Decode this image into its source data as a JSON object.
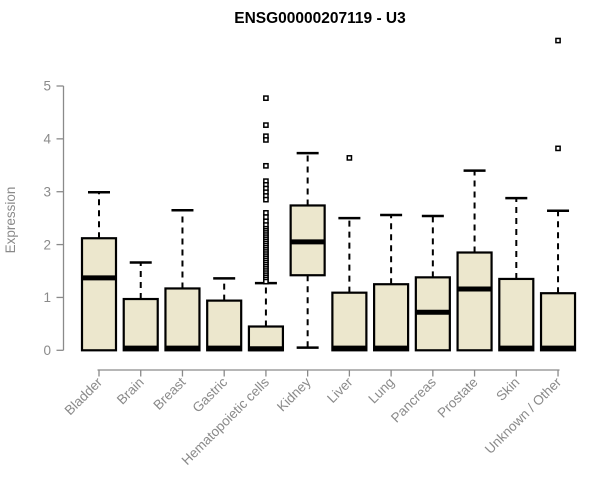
{
  "chart_data": {
    "type": "boxplot",
    "title": "ENSG00000207119 - U3",
    "xlabel": "",
    "ylabel": "Expression",
    "ylim": [
      0,
      5
    ],
    "yticks": [
      0,
      1,
      2,
      3,
      4,
      5
    ],
    "grid": false,
    "legend": false,
    "categories": [
      "Bladder",
      "Brain",
      "Breast",
      "Gastric",
      "Hematopoietic cells",
      "Kidney",
      "Liver",
      "Lung",
      "Pancreas",
      "Prostate",
      "Skin",
      "Unknown / Other"
    ],
    "boxes": [
      {
        "label": "Bladder",
        "min": 0,
        "q1": 0,
        "median": 1.37,
        "q3": 2.12,
        "max": 2.99,
        "outliers": []
      },
      {
        "label": "Brain",
        "min": 0,
        "q1": 0,
        "median": 0.04,
        "q3": 0.97,
        "max": 1.66,
        "outliers": []
      },
      {
        "label": "Breast",
        "min": 0,
        "q1": 0,
        "median": 0.04,
        "q3": 1.17,
        "max": 2.65,
        "outliers": []
      },
      {
        "label": "Gastric",
        "min": 0,
        "q1": 0,
        "median": 0.04,
        "q3": 0.94,
        "max": 1.36,
        "outliers": []
      },
      {
        "label": "Hematopoietic cells",
        "min": 0,
        "q1": 0,
        "median": 0.03,
        "q3": 0.45,
        "max": 1.27,
        "outliers": [
          4.77,
          4.26,
          4.05,
          3.98,
          3.49,
          3.2,
          3.13,
          3.06,
          2.99,
          2.92,
          2.85,
          2.6,
          2.52,
          2.44,
          2.37,
          2.3,
          2.26,
          2.22,
          2.18,
          2.14,
          2.1,
          2.06,
          2.02,
          1.98,
          1.94,
          1.9,
          1.86,
          1.82,
          1.78,
          1.74,
          1.7,
          1.66,
          1.62,
          1.58,
          1.54,
          1.5,
          1.46,
          1.42,
          1.38,
          1.34,
          1.3
        ]
      },
      {
        "label": "Kidney",
        "min": 0.05,
        "q1": 1.42,
        "median": 2.05,
        "q3": 2.74,
        "max": 3.73,
        "outliers": []
      },
      {
        "label": "Liver",
        "min": 0,
        "q1": 0,
        "median": 0.04,
        "q3": 1.09,
        "max": 2.5,
        "outliers": [
          3.64
        ]
      },
      {
        "label": "Lung",
        "min": 0,
        "q1": 0,
        "median": 0.04,
        "q3": 1.25,
        "max": 2.56,
        "outliers": []
      },
      {
        "label": "Pancreas",
        "min": 0,
        "q1": 0,
        "median": 0.72,
        "q3": 1.38,
        "max": 2.54,
        "outliers": []
      },
      {
        "label": "Prostate",
        "min": 0,
        "q1": 0,
        "median": 1.16,
        "q3": 1.85,
        "max": 3.4,
        "outliers": []
      },
      {
        "label": "Skin",
        "min": 0,
        "q1": 0,
        "median": 0.04,
        "q3": 1.35,
        "max": 2.88,
        "outliers": []
      },
      {
        "label": "Unknown / Other",
        "min": 0,
        "q1": 0,
        "median": 0.04,
        "q3": 1.08,
        "max": 2.64,
        "outliers": [
          5.86,
          3.82
        ]
      }
    ],
    "colors": {
      "box_fill": "#ece7cd",
      "box_stroke": "#000000",
      "median": "#000000",
      "whisker": "#000000",
      "outlier_stroke": "#000000",
      "axis_line": "#8a8a8a",
      "axis_text": "#8a8a8a",
      "title_text": "#000000",
      "background": "#ffffff"
    }
  }
}
